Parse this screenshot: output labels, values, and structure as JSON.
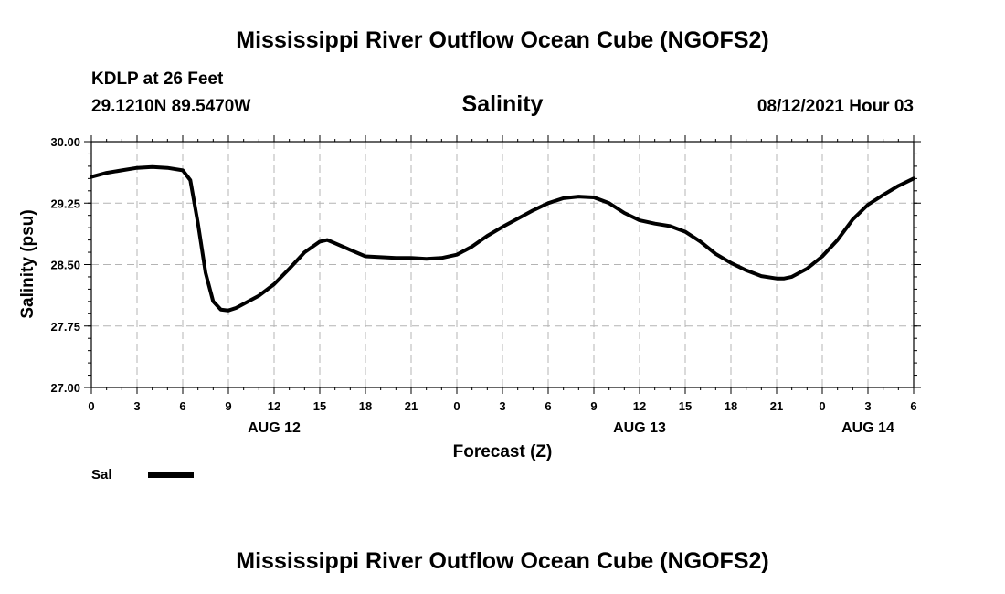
{
  "header": {
    "title_top": "Mississippi River Outflow Ocean Cube (NGOFS2)",
    "station": "KDLP at 26 Feet",
    "coords": "29.1210N  89.5470W",
    "datetime": "08/12/2021 Hour 03"
  },
  "footer": {
    "title_bottom": "Mississippi River Outflow Ocean Cube (NGOFS2)"
  },
  "legend": {
    "label": "Sal",
    "color": "#000000"
  },
  "chart_data": {
    "type": "line",
    "title": "Salinity",
    "xlabel": "Forecast (Z)",
    "ylabel": "Salinity (psu)",
    "xlim": [
      0,
      54
    ],
    "ylim": [
      27.0,
      30.0
    ],
    "grid": true,
    "legend_position": "bottom-left",
    "y_ticks": [
      "30.00",
      "29.25",
      "28.50",
      "27.75",
      "27.00"
    ],
    "y_tick_values": [
      30.0,
      29.25,
      28.5,
      27.75,
      27.0
    ],
    "x_ticks": [
      {
        "x": 0,
        "label": "0"
      },
      {
        "x": 3,
        "label": "3"
      },
      {
        "x": 6,
        "label": "6"
      },
      {
        "x": 9,
        "label": "9"
      },
      {
        "x": 12,
        "label": "12"
      },
      {
        "x": 15,
        "label": "15"
      },
      {
        "x": 18,
        "label": "18"
      },
      {
        "x": 21,
        "label": "21"
      },
      {
        "x": 24,
        "label": "0"
      },
      {
        "x": 27,
        "label": "3"
      },
      {
        "x": 30,
        "label": "6"
      },
      {
        "x": 33,
        "label": "9"
      },
      {
        "x": 36,
        "label": "12"
      },
      {
        "x": 39,
        "label": "15"
      },
      {
        "x": 42,
        "label": "18"
      },
      {
        "x": 45,
        "label": "21"
      },
      {
        "x": 48,
        "label": "0"
      },
      {
        "x": 51,
        "label": "3"
      },
      {
        "x": 54,
        "label": "6"
      }
    ],
    "date_labels": [
      {
        "x": 12,
        "label": "AUG 12"
      },
      {
        "x": 36,
        "label": "AUG 13"
      },
      {
        "x": 51,
        "label": "AUG 14"
      }
    ],
    "series": [
      {
        "name": "Sal",
        "x": [
          0,
          1,
          2,
          3,
          4,
          5,
          6,
          6.5,
          7,
          7.5,
          8,
          8.5,
          9,
          9.5,
          10,
          11,
          12,
          13,
          14,
          15,
          15.5,
          16,
          17,
          18,
          19,
          20,
          21,
          22,
          23,
          24,
          25,
          26,
          27,
          28,
          29,
          30,
          31,
          32,
          33,
          34,
          35,
          36,
          37,
          38,
          39,
          40,
          41,
          42,
          43,
          44,
          45,
          45.5,
          46,
          47,
          48,
          49,
          50,
          51,
          52,
          53,
          54
        ],
        "values": [
          29.57,
          29.62,
          29.65,
          29.68,
          29.69,
          29.68,
          29.65,
          29.53,
          29.0,
          28.4,
          28.05,
          27.95,
          27.94,
          27.97,
          28.02,
          28.12,
          28.26,
          28.45,
          28.65,
          28.78,
          28.8,
          28.76,
          28.68,
          28.6,
          28.59,
          28.58,
          28.58,
          28.57,
          28.58,
          28.62,
          28.72,
          28.85,
          28.96,
          29.06,
          29.16,
          29.25,
          29.31,
          29.33,
          29.32,
          29.25,
          29.13,
          29.04,
          29.0,
          28.97,
          28.9,
          28.78,
          28.63,
          28.52,
          28.43,
          28.36,
          28.33,
          28.33,
          28.35,
          28.45,
          28.6,
          28.8,
          29.05,
          29.23,
          29.35,
          29.46,
          29.55
        ]
      }
    ]
  }
}
